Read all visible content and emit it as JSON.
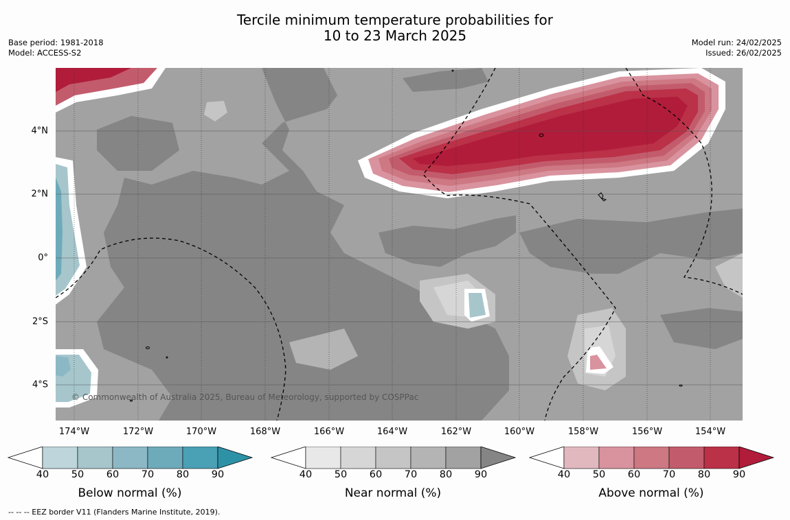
{
  "title_line1": "Tercile minimum temperature probabilities for",
  "title_line2": "10 to 23 March 2025",
  "base_period": "Base period: 1981-2018",
  "model": "Model: ACCESS-S2",
  "model_run": "Model run: 24/02/2025",
  "issued": "Issued: 26/02/2025",
  "copyright": "© Commonwealth of Australia 2025, Bureau of Meteorology, supported by COSPPac",
  "footnote": "--  --  -- EEZ border V11 (Flanders Marine Institute, 2019).",
  "lat_labels": [
    "4°N",
    "2°N",
    "0°",
    "2°S",
    "4°S"
  ],
  "lon_labels": [
    "174°W",
    "172°W",
    "170°W",
    "168°W",
    "166°W",
    "164°W",
    "162°W",
    "160°W",
    "158°W",
    "156°W",
    "154°W"
  ],
  "colorbars": [
    {
      "title": "Below normal (%)",
      "ticks": [
        "40",
        "50",
        "60",
        "70",
        "80",
        "90"
      ],
      "colors": [
        "#bed5dc",
        "#a6c6cc",
        "#8cb8c6",
        "#6eabba",
        "#4aa0b5",
        "#2e92a7"
      ]
    },
    {
      "title": "Near normal (%)",
      "ticks": [
        "40",
        "50",
        "60",
        "70",
        "80",
        "90"
      ],
      "colors": [
        "#e8e8e8",
        "#d6d6d6",
        "#c5c5c5",
        "#b4b4b4",
        "#a2a2a2",
        "#858585"
      ]
    },
    {
      "title": "Above normal (%)",
      "ticks": [
        "40",
        "50",
        "60",
        "70",
        "80",
        "90"
      ],
      "colors": [
        "#e2b8bf",
        "#d9939e",
        "#cd7883",
        "#c25c6c",
        "#bb3148",
        "#b01c3a"
      ]
    }
  ],
  "map_colors": {
    "near_40": "#e8e8e8",
    "near_50": "#d6d6d6",
    "near_60": "#c5c5c5",
    "near_70": "#b4b4b4",
    "near_80": "#a2a2a2",
    "near_90": "#858585",
    "above_50": "#d9939e",
    "above_60": "#cd7883",
    "above_70": "#c25c6c",
    "above_80": "#bb3148",
    "above_90": "#b01c3a",
    "below_50": "#a6c6cc",
    "below_60": "#8cb8c6",
    "below_70": "#6eabba"
  }
}
